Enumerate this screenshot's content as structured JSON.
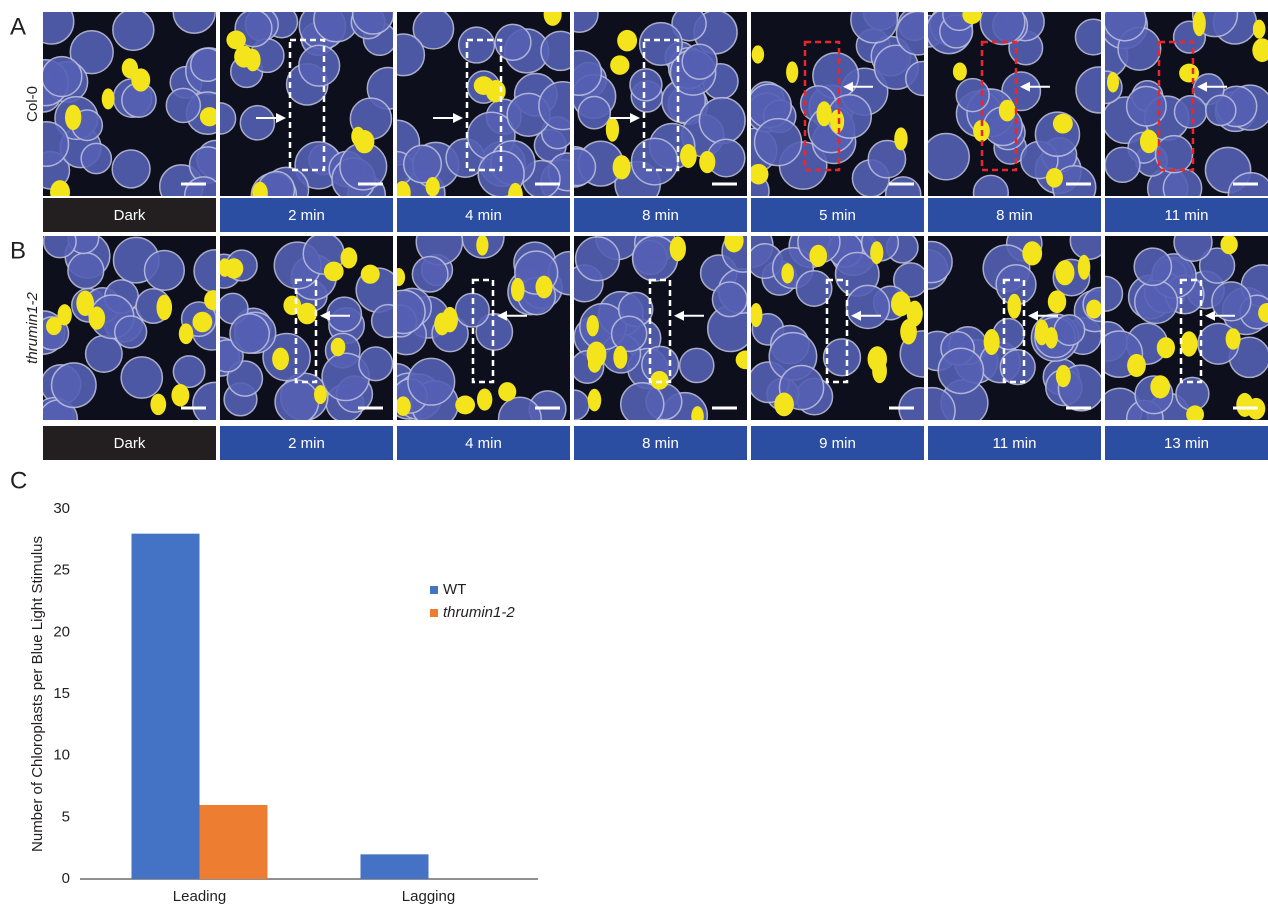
{
  "panel_labels": [
    "A",
    "B",
    "C"
  ],
  "rows": [
    {
      "genotype": "Col-0",
      "times": [
        "Dark",
        "2 min",
        "4 min",
        "8 min",
        "5 min",
        "8 min",
        "11 min"
      ]
    },
    {
      "genotype": "thrumin1-2",
      "times": [
        "Dark",
        "2 min",
        "4 min",
        "8 min",
        "9 min",
        "11 min",
        "13 min"
      ]
    }
  ],
  "chart_data": {
    "type": "bar",
    "y_label": "Number of Chloroplasts per Blue Light Stimulus",
    "categories": [
      "Leading",
      "Lagging"
    ],
    "series": [
      {
        "name": "WT",
        "color": "#4472c4",
        "values": [
          28,
          2
        ]
      },
      {
        "name": "thrumin1-2",
        "color": "#ed7d31",
        "values": [
          6,
          0
        ]
      }
    ],
    "ylim": [
      0,
      30
    ],
    "yticks": [
      0,
      5,
      10,
      15,
      20,
      25,
      30
    ]
  }
}
